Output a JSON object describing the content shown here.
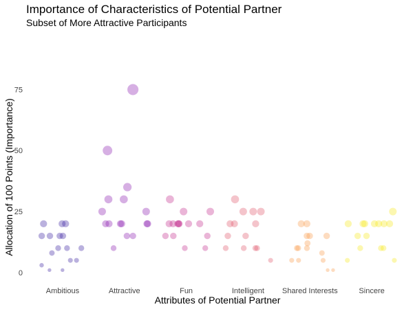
{
  "chart_data": {
    "type": "scatter",
    "title": "Importance of Characteristics of Potential Partner",
    "subtitle": "Subset of More Attractive Participants",
    "xlabel": "Attributes of Potential Partner",
    "ylabel": "Allocation of 100 Points (Importance)",
    "categories": [
      "Ambitious",
      "Attractive",
      "Fun",
      "Intelligent",
      "Shared Interests",
      "Sincere"
    ],
    "y_ticks": [
      0,
      25,
      50,
      75
    ],
    "ylim": [
      -2,
      83
    ],
    "grid": false,
    "legend": "none",
    "colors": [
      "#3a1fa0",
      "#8a1ab0",
      "#c42a8c",
      "#e0566a",
      "#fa9a4a",
      "#f6e81e"
    ],
    "points": [
      {
        "category": "Ambitious",
        "values": [
          20,
          20,
          20,
          15,
          15,
          15,
          15,
          10,
          10,
          10,
          8,
          5,
          5,
          3,
          1,
          1
        ]
      },
      {
        "category": "Attractive",
        "values": [
          75,
          50,
          35,
          30,
          30,
          25,
          25,
          20,
          20,
          20,
          20,
          20,
          20,
          15,
          15,
          10
        ]
      },
      {
        "category": "Fun",
        "values": [
          30,
          25,
          25,
          20,
          20,
          20,
          20,
          20,
          20,
          20,
          15,
          15,
          15,
          10,
          10
        ]
      },
      {
        "category": "Intelligent",
        "values": [
          30,
          25,
          25,
          25,
          20,
          20,
          20,
          15,
          15,
          10,
          10,
          10,
          10,
          5
        ]
      },
      {
        "category": "Shared Interests",
        "values": [
          20,
          20,
          15,
          15,
          15,
          12,
          10,
          10,
          10,
          8,
          5,
          5,
          5,
          1,
          1
        ]
      },
      {
        "category": "Sincere",
        "values": [
          25,
          20,
          20,
          20,
          20,
          20,
          20,
          20,
          15,
          15,
          10,
          10,
          10,
          5,
          5
        ]
      }
    ]
  }
}
